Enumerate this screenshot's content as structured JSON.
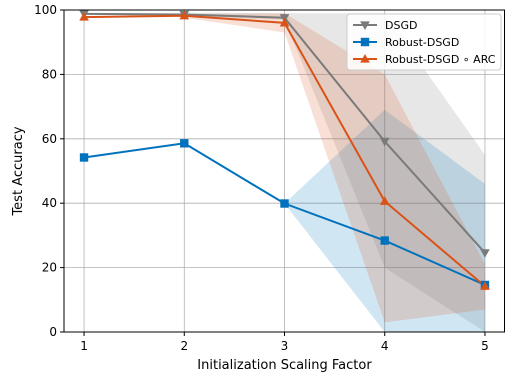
{
  "chart_data": {
    "type": "line",
    "xlabel": "Initialization Scaling Factor",
    "ylabel": "Test Accuracy",
    "x": [
      1,
      2,
      3,
      4,
      5
    ],
    "xlim": [
      0.8,
      5.2
    ],
    "ylim": [
      0,
      100
    ],
    "xticks": [
      "1",
      "2",
      "3",
      "4",
      "5"
    ],
    "yticks": [
      "0",
      "20",
      "40",
      "60",
      "80",
      "100"
    ],
    "grid": true,
    "legend_position": "top-right",
    "series": [
      {
        "name": "DSGD",
        "color": "#7a7a7a",
        "marker": "triangle-down",
        "values": [
          98.8,
          98.6,
          97.6,
          59.2,
          24.6
        ],
        "band_lower": [
          98.3,
          98.1,
          97.0,
          20.0,
          0.0
        ],
        "band_upper": [
          99.3,
          99.2,
          99.0,
          99.0,
          55.0
        ]
      },
      {
        "name": "Robust-DSGD",
        "color": "#0072bd",
        "marker": "square",
        "values": [
          54.2,
          58.6,
          39.9,
          28.4,
          14.6
        ],
        "band_lower": [
          54.2,
          58.6,
          39.9,
          0.0,
          0.0
        ],
        "band_upper": [
          54.2,
          58.6,
          39.9,
          69.0,
          46.0
        ]
      },
      {
        "name": "Robust-DSGD ∘ ARC",
        "color": "#d95319",
        "marker": "triangle-up",
        "values": [
          97.8,
          98.2,
          96.0,
          40.6,
          14.2
        ],
        "band_lower": [
          97.2,
          97.6,
          93.0,
          3.0,
          7.0
        ],
        "band_upper": [
          98.4,
          98.8,
          99.0,
          80.0,
          21.0
        ]
      }
    ]
  }
}
